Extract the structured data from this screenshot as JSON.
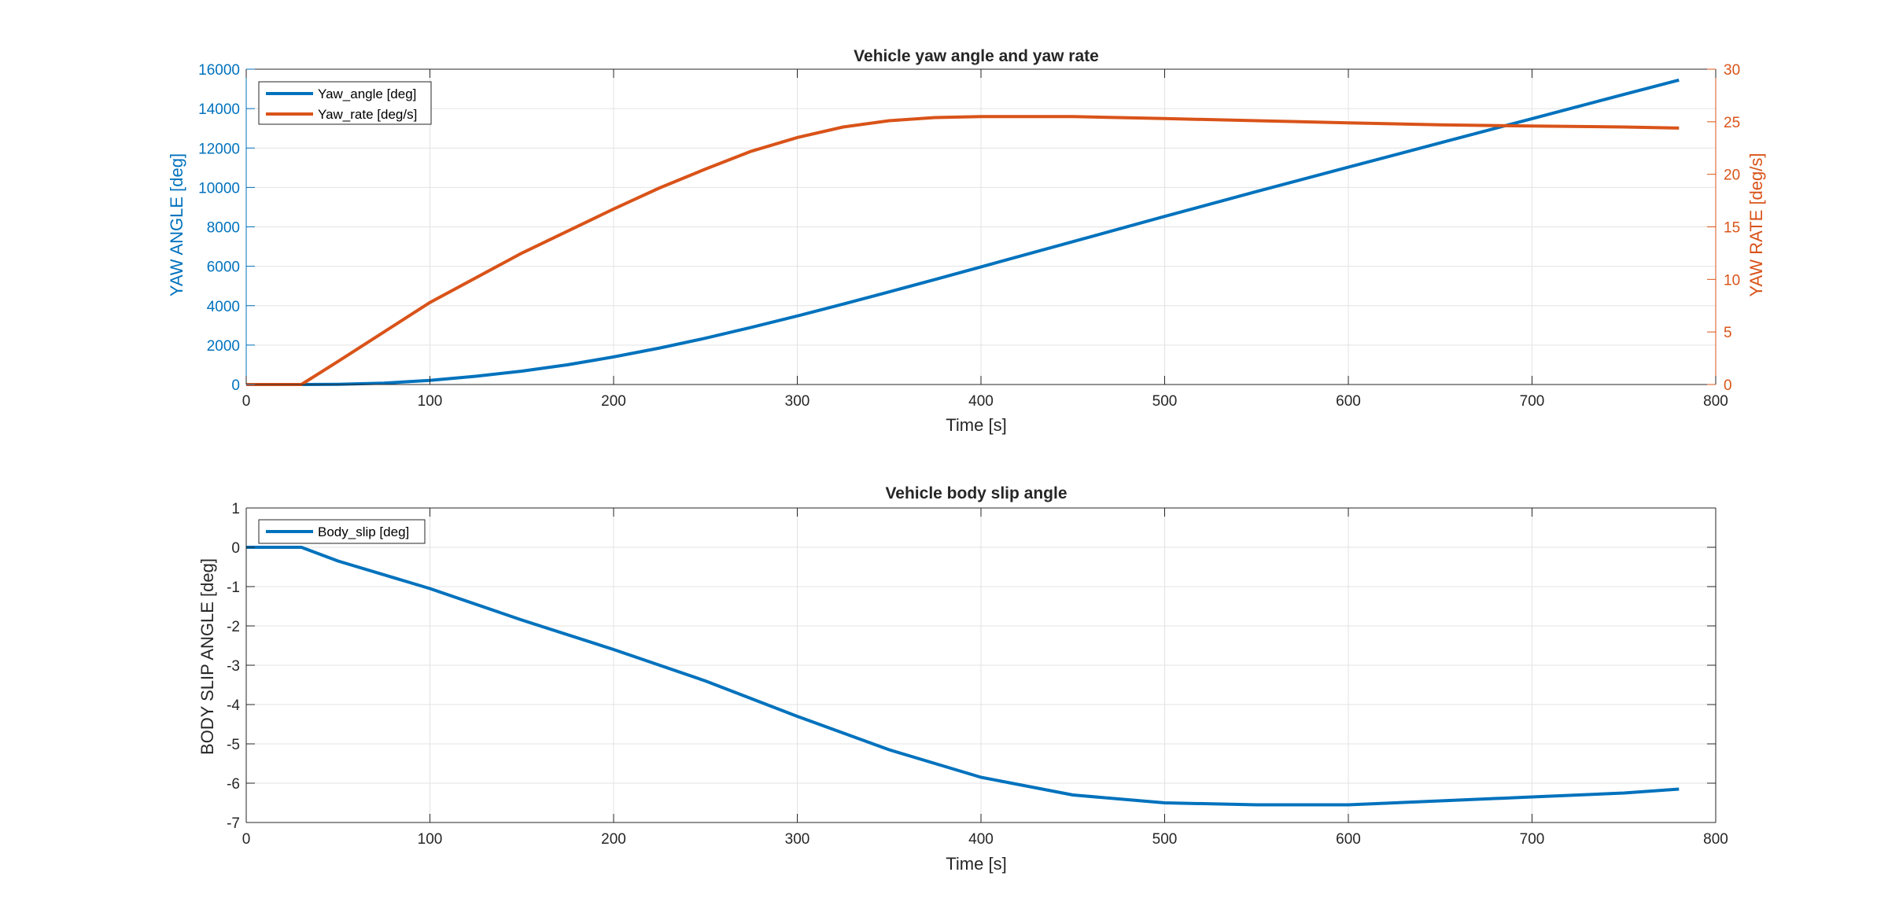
{
  "colors": {
    "blue": "#0072BD",
    "orange": "#D95319",
    "axis": "#262626",
    "grid": "#e3e3e3"
  },
  "chart_data": [
    {
      "type": "line",
      "title": "Vehicle yaw angle and yaw rate",
      "xlabel": "Time [s]",
      "ylabel_left": "YAW ANGLE [deg]",
      "ylabel_right": "YAW RATE [deg/s]",
      "xlim": [
        0,
        800
      ],
      "xticks": [
        0,
        100,
        200,
        300,
        400,
        500,
        600,
        700,
        800
      ],
      "ylim_left": [
        0,
        16000
      ],
      "yticks_left": [
        0,
        2000,
        4000,
        6000,
        8000,
        10000,
        12000,
        14000,
        16000
      ],
      "ylim_right": [
        0,
        30
      ],
      "yticks_right": [
        0,
        5,
        10,
        15,
        20,
        25,
        30
      ],
      "grid": true,
      "legend_location": "top-left",
      "series": [
        {
          "name": "Yaw_angle [deg]",
          "axis": "left",
          "color": "#0072BD",
          "x": [
            0,
            30,
            50,
            75,
            100,
            125,
            150,
            175,
            200,
            225,
            250,
            275,
            300,
            325,
            350,
            375,
            400,
            450,
            500,
            550,
            600,
            650,
            700,
            750,
            780
          ],
          "y": [
            0,
            0,
            10,
            70,
            210,
            420,
            680,
            1000,
            1400,
            1850,
            2350,
            2900,
            3480,
            4080,
            4700,
            5330,
            5970,
            7250,
            8530,
            9790,
            11030,
            12260,
            13490,
            14720,
            15450
          ]
        },
        {
          "name": "Yaw_rate [deg/s]",
          "axis": "right",
          "color": "#D95319",
          "x": [
            0,
            30,
            50,
            100,
            150,
            200,
            225,
            250,
            275,
            300,
            325,
            350,
            375,
            400,
            425,
            450,
            500,
            550,
            600,
            650,
            700,
            750,
            780
          ],
          "y": [
            0,
            0,
            2.2,
            7.8,
            12.5,
            16.7,
            18.7,
            20.5,
            22.2,
            23.5,
            24.5,
            25.1,
            25.4,
            25.5,
            25.5,
            25.5,
            25.3,
            25.1,
            24.9,
            24.7,
            24.6,
            24.5,
            24.4
          ]
        }
      ]
    },
    {
      "type": "line",
      "title": "Vehicle body slip angle",
      "xlabel": "Time [s]",
      "ylabel": "BODY SLIP ANGLE [deg]",
      "xlim": [
        0,
        800
      ],
      "xticks": [
        0,
        100,
        200,
        300,
        400,
        500,
        600,
        700,
        800
      ],
      "ylim": [
        -7,
        1
      ],
      "yticks": [
        -7,
        -6,
        -5,
        -4,
        -3,
        -2,
        -1,
        0,
        1
      ],
      "grid": true,
      "legend_location": "top-left",
      "series": [
        {
          "name": "Body_slip [deg]",
          "color": "#0072BD",
          "x": [
            0,
            30,
            50,
            100,
            150,
            200,
            250,
            300,
            350,
            400,
            450,
            500,
            550,
            600,
            650,
            700,
            750,
            780
          ],
          "y": [
            0,
            0,
            -0.35,
            -1.05,
            -1.85,
            -2.6,
            -3.4,
            -4.3,
            -5.15,
            -5.85,
            -6.3,
            -6.5,
            -6.55,
            -6.55,
            -6.45,
            -6.35,
            -6.25,
            -6.15
          ]
        }
      ]
    }
  ]
}
